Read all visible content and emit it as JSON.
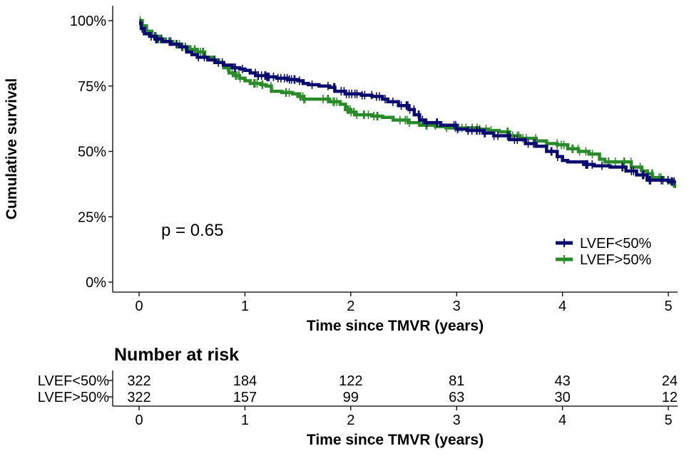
{
  "chart_data": [
    {
      "type": "line",
      "subtype": "kaplan-meier",
      "title": "",
      "xlabel": "Time since TMVR (years)",
      "ylabel": "Cumulative survival",
      "xlim": [
        0,
        5
      ],
      "ylim": [
        0,
        100
      ],
      "x_ticks": [
        0,
        1,
        2,
        3,
        4,
        5
      ],
      "y_ticks": [
        0,
        25,
        50,
        75,
        100
      ],
      "y_tick_labels": [
        "0%",
        "25%",
        "50%",
        "75%",
        "100%"
      ],
      "grid": false,
      "legend_position": "bottom-right",
      "annotation": "p = 0.65",
      "series": [
        {
          "name": "LVEF<50%",
          "color": "#0b0b6e",
          "points": [
            [
              0,
              99
            ],
            [
              0.02,
              97
            ],
            [
              0.05,
              95
            ],
            [
              0.1,
              94
            ],
            [
              0.15,
              93
            ],
            [
              0.22,
              92
            ],
            [
              0.3,
              91
            ],
            [
              0.38,
              90
            ],
            [
              0.45,
              88
            ],
            [
              0.5,
              87
            ],
            [
              0.55,
              86
            ],
            [
              0.65,
              85
            ],
            [
              0.72,
              84
            ],
            [
              0.8,
              83
            ],
            [
              0.88,
              82
            ],
            [
              0.95,
              81.5
            ],
            [
              1.0,
              81
            ],
            [
              1.05,
              80
            ],
            [
              1.1,
              79
            ],
            [
              1.2,
              78.5
            ],
            [
              1.3,
              78
            ],
            [
              1.4,
              77.5
            ],
            [
              1.5,
              77
            ],
            [
              1.55,
              76
            ],
            [
              1.6,
              75.5
            ],
            [
              1.7,
              75
            ],
            [
              1.8,
              74.5
            ],
            [
              1.85,
              73
            ],
            [
              1.95,
              72
            ],
            [
              2.0,
              72
            ],
            [
              2.1,
              71.5
            ],
            [
              2.2,
              71
            ],
            [
              2.3,
              70
            ],
            [
              2.35,
              69
            ],
            [
              2.45,
              67.5
            ],
            [
              2.55,
              66
            ],
            [
              2.6,
              64
            ],
            [
              2.65,
              62
            ],
            [
              2.7,
              61
            ],
            [
              2.85,
              60
            ],
            [
              3.0,
              58.5
            ],
            [
              3.1,
              58
            ],
            [
              3.25,
              57
            ],
            [
              3.35,
              56
            ],
            [
              3.5,
              54.5
            ],
            [
              3.65,
              53
            ],
            [
              3.75,
              52
            ],
            [
              3.85,
              50
            ],
            [
              3.95,
              48
            ],
            [
              4.0,
              46.5
            ],
            [
              4.05,
              46
            ],
            [
              4.2,
              45
            ],
            [
              4.3,
              44.5
            ],
            [
              4.45,
              44
            ],
            [
              4.6,
              42.5
            ],
            [
              4.7,
              41
            ],
            [
              4.8,
              39
            ],
            [
              4.9,
              39
            ],
            [
              5.0,
              38.5
            ],
            [
              5.07,
              38.5
            ]
          ]
        },
        {
          "name": "LVEF>50%",
          "color": "#2a8a2a",
          "points": [
            [
              0,
              100
            ],
            [
              0.03,
              98
            ],
            [
              0.07,
              96
            ],
            [
              0.12,
              94
            ],
            [
              0.18,
              93
            ],
            [
              0.25,
              92
            ],
            [
              0.32,
              91
            ],
            [
              0.4,
              90
            ],
            [
              0.48,
              89
            ],
            [
              0.55,
              88
            ],
            [
              0.62,
              86
            ],
            [
              0.7,
              85
            ],
            [
              0.75,
              84
            ],
            [
              0.8,
              82
            ],
            [
              0.85,
              80
            ],
            [
              0.9,
              79
            ],
            [
              0.95,
              78
            ],
            [
              1.0,
              77
            ],
            [
              1.05,
              76
            ],
            [
              1.15,
              75.5
            ],
            [
              1.2,
              75
            ],
            [
              1.25,
              73
            ],
            [
              1.35,
              72.5
            ],
            [
              1.45,
              72
            ],
            [
              1.5,
              71
            ],
            [
              1.55,
              70
            ],
            [
              1.7,
              70
            ],
            [
              1.8,
              69
            ],
            [
              1.9,
              68
            ],
            [
              1.95,
              66
            ],
            [
              2.0,
              65
            ],
            [
              2.05,
              64
            ],
            [
              2.2,
              63.5
            ],
            [
              2.3,
              63
            ],
            [
              2.4,
              62
            ],
            [
              2.55,
              61
            ],
            [
              2.65,
              60
            ],
            [
              2.8,
              59.5
            ],
            [
              2.9,
              59
            ],
            [
              3.0,
              59
            ],
            [
              3.2,
              58.5
            ],
            [
              3.3,
              58
            ],
            [
              3.4,
              57.5
            ],
            [
              3.5,
              56
            ],
            [
              3.6,
              55
            ],
            [
              3.75,
              54
            ],
            [
              3.85,
              53
            ],
            [
              3.95,
              52.5
            ],
            [
              4.05,
              51
            ],
            [
              4.15,
              50
            ],
            [
              4.25,
              49
            ],
            [
              4.35,
              47
            ],
            [
              4.4,
              46
            ],
            [
              4.45,
              46
            ],
            [
              4.65,
              44
            ],
            [
              4.75,
              42.5
            ],
            [
              4.8,
              41.5
            ],
            [
              4.85,
              40
            ],
            [
              4.95,
              39
            ],
            [
              5.02,
              38
            ],
            [
              5.06,
              36
            ]
          ]
        }
      ]
    },
    {
      "type": "table",
      "title": "Number at risk",
      "xlabel": "Time since TMVR (years)",
      "x_ticks": [
        0,
        1,
        2,
        3,
        4,
        5
      ],
      "rows": [
        {
          "name": "LVEF<50%",
          "values": [
            "322",
            "184",
            "122",
            "81",
            "43",
            "24"
          ]
        },
        {
          "name": "LVEF>50%",
          "values": [
            "322",
            "157",
            "99",
            "63",
            "30",
            "12"
          ]
        }
      ]
    }
  ]
}
